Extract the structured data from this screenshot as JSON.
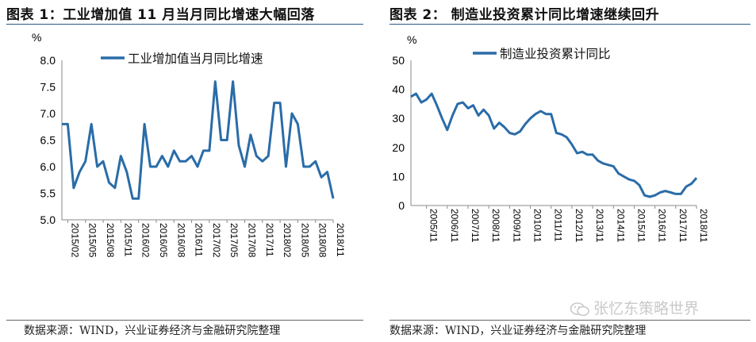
{
  "panels": {
    "left": {
      "title": "图表 1：工业增加值 11 月当月同比增速大幅回落",
      "source": "数据来源：WIND，兴业证券经济与金融研究院整理"
    },
    "right": {
      "title": "图表 2：   制造业投资累计同比增速继续回升",
      "source": "数据来源：WIND，兴业证券经济与金融研究院整理"
    }
  },
  "watermark": {
    "text": "张忆东策略世界"
  },
  "colors": {
    "series": "#2a6ca8",
    "title_rule": "#2a5a8a",
    "axis": "#8a8a8a"
  },
  "chart_data": [
    {
      "type": "line",
      "ylabel": "%",
      "ylim": [
        5.0,
        8.0
      ],
      "yticks": [
        "5.0",
        "5.5",
        "6.0",
        "6.5",
        "7.0",
        "7.5",
        "8.0"
      ],
      "xtick_labels": [
        "2015/02",
        "2015/05",
        "2015/08",
        "2015/11",
        "2016/02",
        "2016/05",
        "2016/08",
        "2016/11",
        "2017/02",
        "2017/05",
        "2017/08",
        "2017/11",
        "2018/02",
        "2018/05",
        "2018/08",
        "2018/11"
      ],
      "legend": "工业增加值当月同比增速",
      "series": [
        {
          "name": "工业增加值当月同比增速",
          "x": [
            "2015/01",
            "2015/02",
            "2015/03",
            "2015/04",
            "2015/05",
            "2015/06",
            "2015/07",
            "2015/08",
            "2015/09",
            "2015/10",
            "2015/11",
            "2015/12",
            "2016/01",
            "2016/02",
            "2016/03",
            "2016/04",
            "2016/05",
            "2016/06",
            "2016/07",
            "2016/08",
            "2016/09",
            "2016/10",
            "2016/11",
            "2016/12",
            "2017/01",
            "2017/02",
            "2017/03",
            "2017/04",
            "2017/05",
            "2017/06",
            "2017/07",
            "2017/08",
            "2017/09",
            "2017/10",
            "2017/11",
            "2017/12",
            "2018/01",
            "2018/02",
            "2018/03",
            "2018/04",
            "2018/05",
            "2018/06",
            "2018/07",
            "2018/08",
            "2018/09",
            "2018/10",
            "2018/11"
          ],
          "values": [
            6.8,
            6.8,
            5.6,
            5.9,
            6.1,
            6.8,
            6.0,
            6.1,
            5.7,
            5.6,
            6.2,
            5.9,
            5.4,
            5.4,
            6.8,
            6.0,
            6.0,
            6.2,
            6.0,
            6.3,
            6.1,
            6.1,
            6.2,
            6.0,
            6.3,
            6.3,
            7.6,
            6.5,
            6.5,
            7.6,
            6.4,
            6.0,
            6.6,
            6.2,
            6.1,
            6.2,
            7.2,
            7.2,
            6.0,
            7.0,
            6.8,
            6.0,
            6.0,
            6.1,
            5.8,
            5.9,
            5.4
          ]
        }
      ]
    },
    {
      "type": "line",
      "ylabel": "%",
      "ylim": [
        0,
        50
      ],
      "yticks": [
        "0",
        "10",
        "20",
        "30",
        "40",
        "50"
      ],
      "xtick_labels": [
        "2005/11",
        "2006/11",
        "2007/11",
        "2008/11",
        "2009/11",
        "2010/11",
        "2011/11",
        "2012/11",
        "2013/11",
        "2014/11",
        "2015/11",
        "2016/11",
        "2017/11",
        "2018/11"
      ],
      "legend": "制造业投资累计同比",
      "series": [
        {
          "name": "制造业投资累计同比",
          "x": [
            "2005/02",
            "2005/05",
            "2005/08",
            "2005/11",
            "2006/02",
            "2006/05",
            "2006/08",
            "2006/11",
            "2007/02",
            "2007/05",
            "2007/08",
            "2007/11",
            "2008/02",
            "2008/05",
            "2008/08",
            "2008/11",
            "2009/02",
            "2009/05",
            "2009/08",
            "2009/11",
            "2010/02",
            "2010/05",
            "2010/08",
            "2010/11",
            "2011/02",
            "2011/05",
            "2011/08",
            "2011/11",
            "2012/02",
            "2012/05",
            "2012/08",
            "2012/11",
            "2013/02",
            "2013/05",
            "2013/08",
            "2013/11",
            "2014/02",
            "2014/05",
            "2014/08",
            "2014/11",
            "2015/02",
            "2015/05",
            "2015/08",
            "2015/11",
            "2016/02",
            "2016/05",
            "2016/08",
            "2016/11",
            "2017/02",
            "2017/05",
            "2017/08",
            "2017/11",
            "2018/02",
            "2018/05",
            "2018/08",
            "2018/11"
          ],
          "values": [
            37.5,
            38.5,
            35.5,
            36.5,
            38.5,
            34.5,
            30.0,
            26.0,
            31.0,
            35.0,
            35.5,
            33.5,
            34.5,
            31.0,
            33.0,
            31.0,
            26.5,
            28.5,
            27.0,
            25.0,
            24.5,
            25.5,
            28.0,
            30.0,
            31.5,
            32.5,
            31.5,
            31.5,
            25.0,
            24.5,
            23.5,
            21.0,
            18.0,
            18.5,
            17.5,
            17.5,
            15.5,
            14.5,
            14.0,
            13.5,
            11.0,
            10.0,
            9.0,
            8.5,
            7.0,
            3.5,
            3.0,
            3.5,
            4.5,
            5.0,
            4.5,
            4.0,
            4.0,
            6.5,
            7.5,
            9.5
          ]
        }
      ]
    }
  ]
}
